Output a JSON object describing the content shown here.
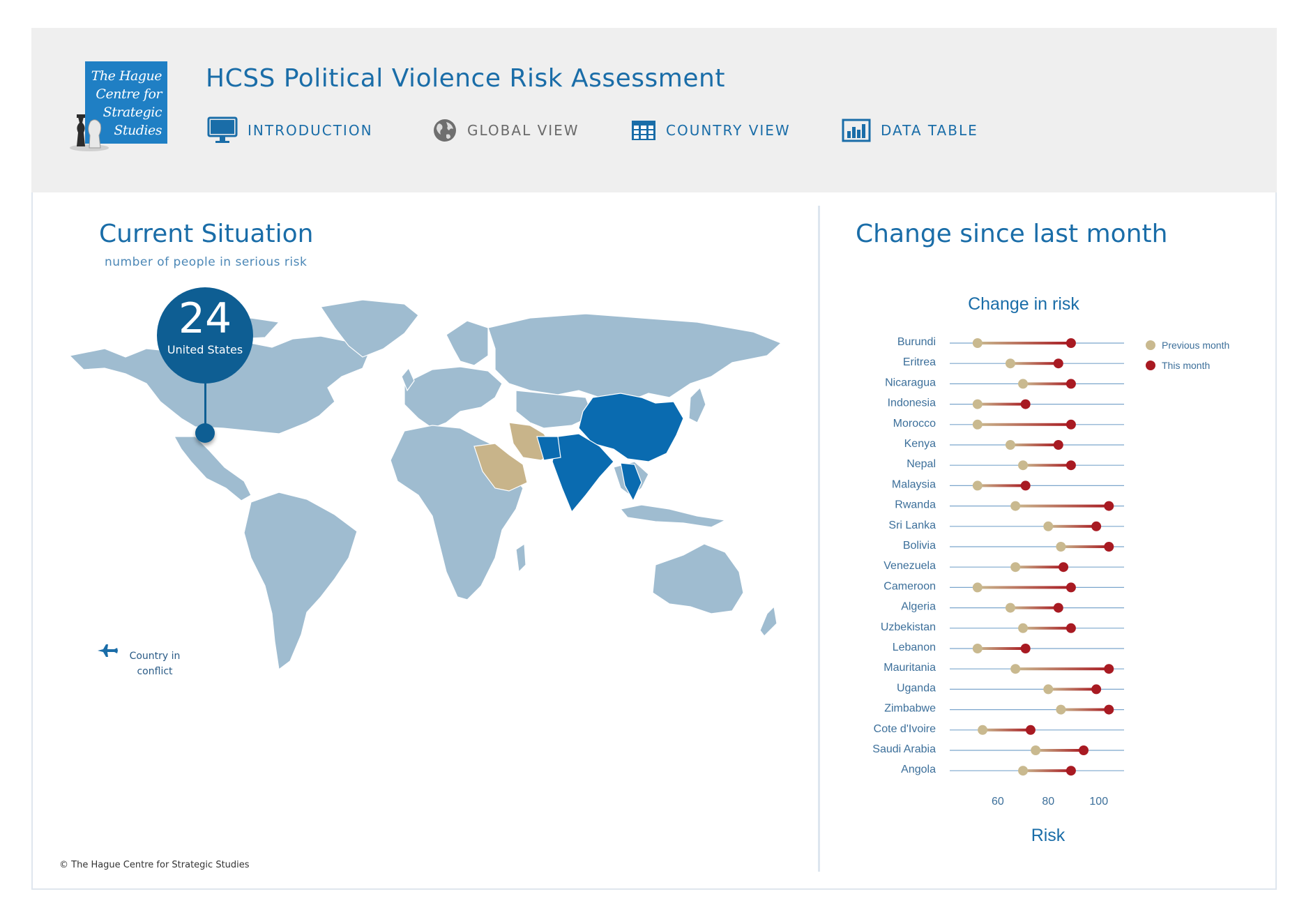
{
  "app": {
    "logo_lines": [
      "The Hague",
      "Centre for",
      "Strategic",
      "Studies"
    ],
    "title": "HCSS Political Violence Risk Assessment"
  },
  "nav": [
    {
      "label": "INTRODUCTION",
      "icon": "monitor-icon"
    },
    {
      "label": "GLOBAL VIEW",
      "icon": "globe-icon"
    },
    {
      "label": "COUNTRY VIEW",
      "icon": "grid-table-icon"
    },
    {
      "label": "DATA TABLE",
      "icon": "bar-chart-icon"
    }
  ],
  "left_panel": {
    "heading": "Current Situation",
    "subheading": "number of people in serious risk",
    "callout_value": "24",
    "callout_country": "United States",
    "legend_conflict": "Country in conflict",
    "legend_icon": "fighter-jet-icon",
    "colors": {
      "map_default": "#9fbcd0",
      "highlight_blue": "#0a6bb0",
      "highlight_tan": "#c8b48a",
      "callout": "#0e5e93"
    }
  },
  "right_panel": {
    "heading": "Change since last month"
  },
  "chart_data": {
    "type": "scatter",
    "title": "Change in risk",
    "xlabel": "Risk",
    "ylabel": "",
    "xlim": [
      41,
      110
    ],
    "xticks": [
      60,
      80,
      100
    ],
    "legend_position": "top-right",
    "series": [
      {
        "name": "Previous month",
        "color": "#c9b98f"
      },
      {
        "name": "This month",
        "color": "#a81a22"
      }
    ],
    "categories": [
      "Burundi",
      "Eritrea",
      "Nicaragua",
      "Indonesia",
      "Morocco",
      "Kenya",
      "Nepal",
      "Malaysia",
      "Rwanda",
      "Sri Lanka",
      "Bolivia",
      "Venezuela",
      "Cameroon",
      "Algeria",
      "Uzbekistan",
      "Lebanon",
      "Mauritania",
      "Uganda",
      "Zimbabwe",
      "Cote d'Ivoire",
      "Saudi Arabia",
      "Angola"
    ],
    "previous": [
      52,
      65,
      70,
      52,
      52,
      65,
      70,
      52,
      67,
      80,
      85,
      67,
      52,
      65,
      70,
      52,
      67,
      80,
      85,
      54,
      75,
      70
    ],
    "current": [
      89,
      84,
      89,
      71,
      89,
      84,
      89,
      71,
      104,
      99,
      104,
      86,
      89,
      84,
      89,
      71,
      104,
      99,
      104,
      73,
      94,
      89
    ]
  },
  "footer": {
    "copyright": "© The Hague Centre for Strategic Studies"
  }
}
